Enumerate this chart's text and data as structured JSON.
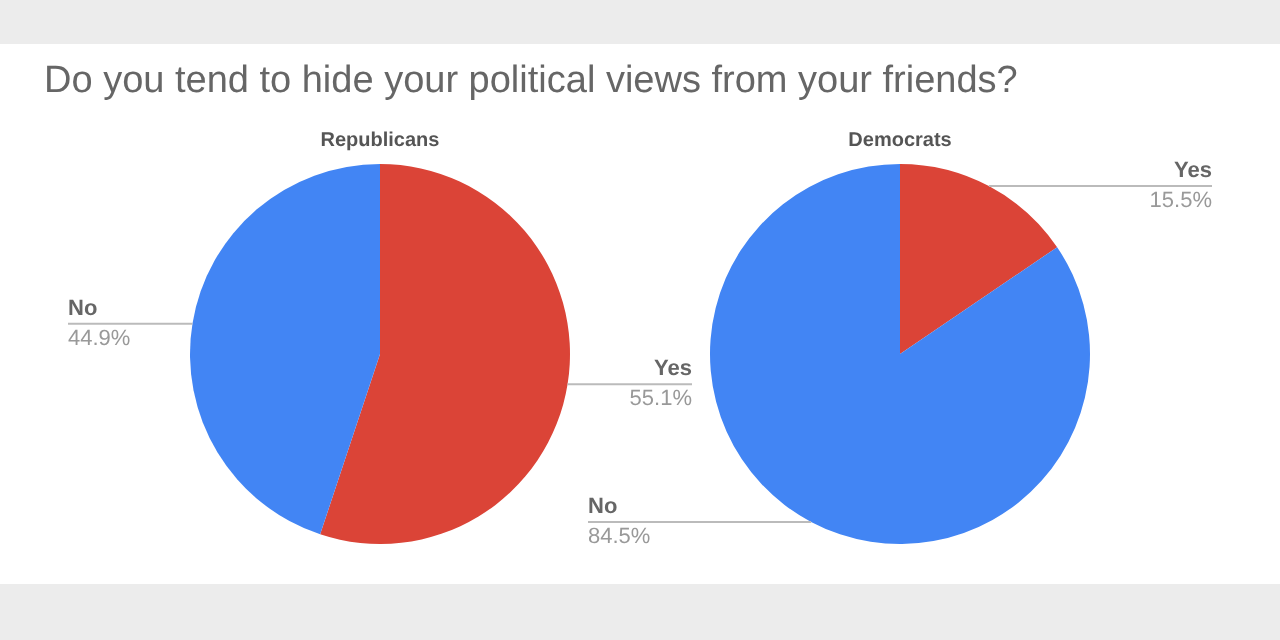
{
  "chart_data": [
    {
      "type": "pie",
      "title": "Do you tend to hide your political views from your friends?",
      "subtitle": "Republicans",
      "categories": [
        "Yes",
        "No"
      ],
      "values": [
        55.1,
        44.9
      ],
      "value_labels": [
        "55.1%",
        "44.9%"
      ],
      "colors": [
        "#db4437",
        "#4285f4"
      ],
      "legend": false
    },
    {
      "type": "pie",
      "subtitle": "Democrats",
      "categories": [
        "Yes",
        "No"
      ],
      "values": [
        15.5,
        84.5
      ],
      "value_labels": [
        "15.5%",
        "84.5%"
      ],
      "colors": [
        "#db4437",
        "#4285f4"
      ],
      "legend": false
    }
  ]
}
